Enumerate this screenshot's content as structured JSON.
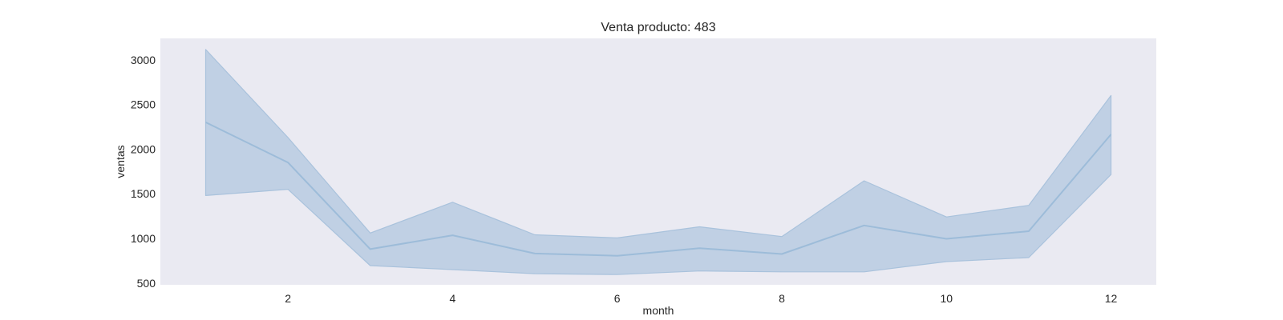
{
  "chart_data": {
    "type": "line",
    "title": "Venta producto: 483",
    "xlabel": "month",
    "ylabel": "ventas",
    "xlim": [
      0.45,
      12.55
    ],
    "ylim": [
      480,
      3240
    ],
    "xticks": [
      2,
      4,
      6,
      8,
      10,
      12
    ],
    "yticks": [
      500,
      1000,
      1500,
      2000,
      2500,
      3000
    ],
    "grid": false,
    "series": [
      {
        "x": [
          1,
          2,
          3,
          4,
          5,
          6,
          7,
          8,
          9,
          10,
          11,
          12
        ],
        "values": [
          2300,
          1850,
          880,
          1035,
          830,
          805,
          890,
          825,
          1145,
          995,
          1080,
          2165
        ],
        "ci_lower": [
          1480,
          1550,
          695,
          650,
          605,
          595,
          635,
          625,
          625,
          740,
          785,
          1715
        ],
        "ci_upper": [
          3115,
          2130,
          1060,
          1405,
          1040,
          1005,
          1130,
          1020,
          1645,
          1240,
          1370,
          2600
        ]
      }
    ],
    "colors": {
      "plot_background": "#eaeaf2",
      "line": "#9dbcd9",
      "band": "#a9c2dc"
    }
  }
}
